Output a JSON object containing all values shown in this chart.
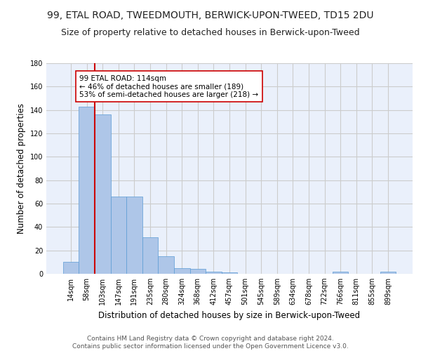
{
  "title": "99, ETAL ROAD, TWEEDMOUTH, BERWICK-UPON-TWEED, TD15 2DU",
  "subtitle": "Size of property relative to detached houses in Berwick-upon-Tweed",
  "xlabel": "Distribution of detached houses by size in Berwick-upon-Tweed",
  "ylabel": "Number of detached properties",
  "bar_values": [
    10,
    143,
    136,
    66,
    66,
    31,
    15,
    5,
    4,
    2,
    1,
    0,
    0,
    0,
    0,
    0,
    0,
    2,
    0,
    0,
    2
  ],
  "bar_labels": [
    "14sqm",
    "58sqm",
    "103sqm",
    "147sqm",
    "191sqm",
    "235sqm",
    "280sqm",
    "324sqm",
    "368sqm",
    "412sqm",
    "457sqm",
    "501sqm",
    "545sqm",
    "589sqm",
    "634sqm",
    "678sqm",
    "722sqm",
    "766sqm",
    "811sqm",
    "855sqm",
    "899sqm"
  ],
  "bar_color": "#aec6e8",
  "bar_edge_color": "#5b9bd5",
  "vline_x_index": 2,
  "vline_color": "#cc0000",
  "annotation_text": "99 ETAL ROAD: 114sqm\n← 46% of detached houses are smaller (189)\n53% of semi-detached houses are larger (218) →",
  "annotation_box_color": "#ffffff",
  "annotation_box_edge": "#cc0000",
  "ylim": [
    0,
    180
  ],
  "yticks": [
    0,
    20,
    40,
    60,
    80,
    100,
    120,
    140,
    160,
    180
  ],
  "grid_color": "#cccccc",
  "bg_color": "#eaf0fb",
  "footer": "Contains HM Land Registry data © Crown copyright and database right 2024.\nContains public sector information licensed under the Open Government Licence v3.0.",
  "title_fontsize": 10,
  "subtitle_fontsize": 9,
  "xlabel_fontsize": 8.5,
  "ylabel_fontsize": 8.5,
  "tick_fontsize": 7,
  "footer_fontsize": 6.5,
  "annotation_fontsize": 7.5
}
